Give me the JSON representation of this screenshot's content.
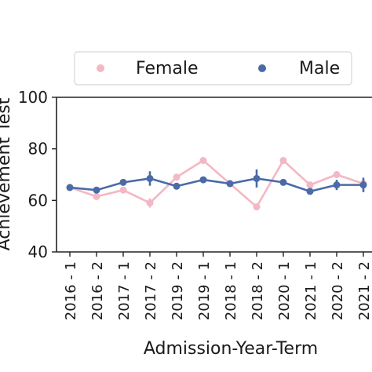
{
  "chart_data": {
    "type": "line",
    "xlabel": "Admission-Year-Term",
    "ylabel": "Achievement Test",
    "ylim": [
      40,
      100
    ],
    "yticks": [
      40,
      60,
      80,
      100
    ],
    "grid": false,
    "legend_placement": "top",
    "categories": [
      "2016 - 1",
      "2016 - 2",
      "2017 - 1",
      "2017 - 2",
      "2019 - 2",
      "2019 - 1",
      "2018 - 1",
      "2018 - 2",
      "2020 - 1",
      "2021 - 1",
      "2020 - 2",
      "2021 - 2"
    ],
    "series": [
      {
        "name": "Female",
        "color": "#f4b7c4",
        "values": [
          65.0,
          61.5,
          64.0,
          59.0,
          69.0,
          75.5,
          66.5,
          57.5,
          75.5,
          66.0,
          70.0,
          66.5
        ],
        "errors": [
          0.0,
          0.0,
          0.0,
          1.8,
          0.0,
          0.0,
          0.0,
          0.0,
          0.0,
          0.0,
          0.0,
          1.0
        ]
      },
      {
        "name": "Male",
        "color": "#4a6aa8",
        "values": [
          65.0,
          64.0,
          67.0,
          68.5,
          65.5,
          68.0,
          66.5,
          68.5,
          67.0,
          63.5,
          66.0,
          66.0
        ],
        "errors": [
          0.5,
          0.5,
          1.2,
          2.8,
          1.0,
          0.8,
          0.8,
          3.5,
          0.8,
          1.0,
          2.0,
          2.8
        ]
      }
    ]
  }
}
